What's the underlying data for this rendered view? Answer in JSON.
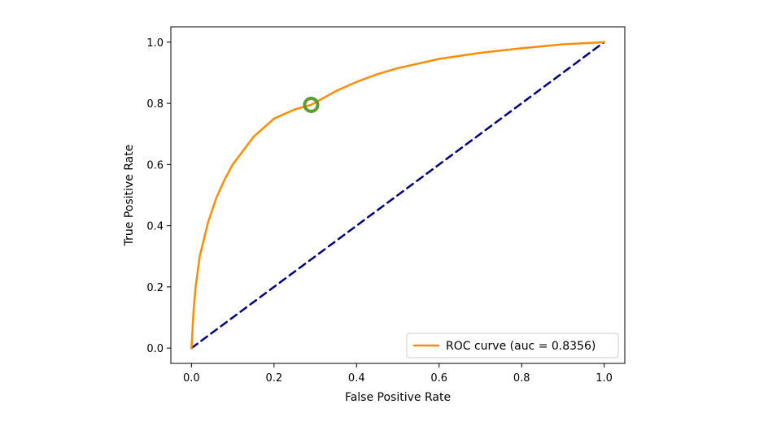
{
  "chart_data": {
    "type": "line",
    "title": "",
    "xlabel": "False Positive Rate",
    "ylabel": "True Positive Rate",
    "xlim": [
      -0.05,
      1.05
    ],
    "ylim": [
      -0.05,
      1.05
    ],
    "xticks": [
      "0.0",
      "0.2",
      "0.4",
      "0.6",
      "0.8",
      "1.0"
    ],
    "yticks": [
      "0.0",
      "0.2",
      "0.4",
      "0.6",
      "0.8",
      "1.0"
    ],
    "grid": false,
    "legend_position": "lower-right",
    "series": [
      {
        "name": "ROC curve (auc = 0.8356)",
        "color": "#ff8c00",
        "style": "solid",
        "x": [
          0.0,
          0.005,
          0.01,
          0.02,
          0.04,
          0.06,
          0.08,
          0.1,
          0.15,
          0.2,
          0.25,
          0.29,
          0.35,
          0.4,
          0.45,
          0.5,
          0.6,
          0.7,
          0.8,
          0.9,
          1.0
        ],
        "y": [
          0.0,
          0.12,
          0.2,
          0.3,
          0.41,
          0.49,
          0.55,
          0.6,
          0.69,
          0.75,
          0.78,
          0.795,
          0.84,
          0.87,
          0.895,
          0.915,
          0.945,
          0.965,
          0.98,
          0.993,
          1.0
        ]
      },
      {
        "name": "",
        "color": "#000080",
        "style": "dashed",
        "x": [
          0.0,
          1.0
        ],
        "y": [
          0.0,
          1.0
        ]
      }
    ],
    "highlight_point": {
      "x": 0.29,
      "y": 0.795,
      "color": "#5a9e2f"
    }
  }
}
